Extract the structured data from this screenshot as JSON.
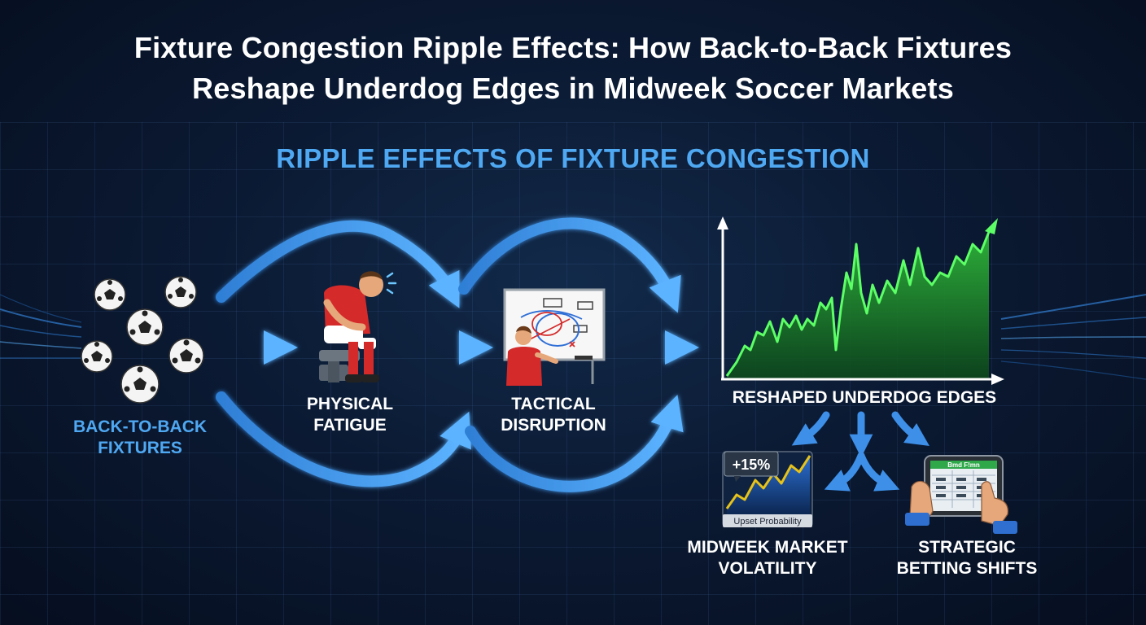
{
  "title_line1": "Fixture Congestion Ripple Effects: How Back-to-Back Fixtures",
  "title_line2": "Reshape Underdog Edges in Midweek Soccer Markets",
  "subtitle": "RIPPLE EFFECTS OF FIXTURE CONGESTION",
  "nodes": {
    "fixtures_line1": "BACK-TO-BACK",
    "fixtures_line2": "FIXTURES",
    "fatigue_line1": "PHYSICAL",
    "fatigue_line2": "FATIGUE",
    "tactical_line1": "TACTICAL",
    "tactical_line2": "DISRUPTION",
    "edges": "RESHAPED UNDERDOG EDGES",
    "volatility_line1": "MIDWEEK MARKET",
    "volatility_line2": "VOLATILITY",
    "betting_line1": "STRATEGIC",
    "betting_line2": "BETTING SHIFTS"
  },
  "mini_chart": {
    "badge": "+15%",
    "caption": "Upset Probability"
  },
  "tablet": {
    "header": "Bmd F!mn"
  },
  "colors": {
    "accent_blue": "#4fa8f2",
    "arrow_blue": "#3d8fe8",
    "chart_green": "#39d443",
    "chart_yellow": "#e6c21a",
    "background": "#0b1a33"
  }
}
